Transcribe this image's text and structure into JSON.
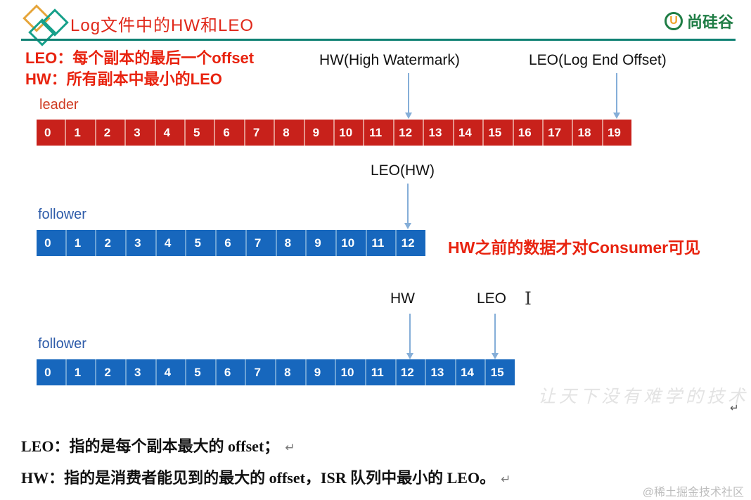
{
  "colors": {
    "accent-red": "#e8230f",
    "title-red": "#e0281a",
    "teal-line": "#0f8173",
    "leader-cell": "#c8211b",
    "leader-gap": "#e5948b",
    "leader-label": "#cf3a21",
    "follower-cell": "#1767bd",
    "follower-gap": "#6ca3d6",
    "follower-label": "#2d5ba9",
    "arrow-blue": "#85aed8",
    "brand-green": "#1f7d45",
    "brand-orange": "#f0a227"
  },
  "header": {
    "title": "Log文件中的HW和LEO",
    "brand_name": "尚硅谷",
    "brand_icon_glyph": "U"
  },
  "definitions": {
    "leo": "LEO：每个副本的最后一个offset",
    "hw": "HW：所有副本中最小的LEO"
  },
  "leader_section": {
    "hw_pointer_label": "HW(High Watermark)",
    "leo_pointer_label": "LEO(Log End Offset)",
    "row_label": "leader",
    "hw_index": "12",
    "leo_index": "19",
    "cells": [
      "0",
      "1",
      "2",
      "3",
      "4",
      "5",
      "6",
      "7",
      "8",
      "9",
      "10",
      "11",
      "12",
      "13",
      "14",
      "15",
      "16",
      "17",
      "18",
      "19"
    ]
  },
  "follower1_section": {
    "pointer_label": "LEO(HW)",
    "row_label": "follower",
    "pointer_index": "12",
    "cells": [
      "0",
      "1",
      "2",
      "3",
      "4",
      "5",
      "6",
      "7",
      "8",
      "9",
      "10",
      "11",
      "12"
    ],
    "note": "HW之前的数据才对Consumer可见"
  },
  "follower2_section": {
    "hw_pointer_label": "HW",
    "leo_pointer_label": "LEO",
    "row_label": "follower",
    "hw_index": "12",
    "leo_index": "15",
    "cells": [
      "0",
      "1",
      "2",
      "3",
      "4",
      "5",
      "6",
      "7",
      "8",
      "9",
      "10",
      "11",
      "12",
      "13",
      "14",
      "15"
    ]
  },
  "icons": {
    "text_cursor_glyph": "I"
  },
  "watermark_script": "让天下没有难学的技术",
  "footer": {
    "line1": "LEO：指的是每个副本最大的 offset；",
    "line2": "HW：指的是消费者能见到的最大的 offset，ISR 队列中最小的 LEO。",
    "return_mark": "↵"
  },
  "community_watermark": "@稀土掘金技术社区"
}
